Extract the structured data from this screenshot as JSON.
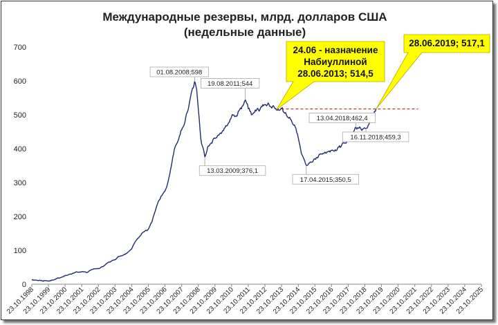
{
  "chart_data": {
    "type": "line",
    "title": [
      "Международные резервы, млрд. долларов США",
      "(недельные данные)"
    ],
    "xlabel": "",
    "ylabel": "",
    "ylim": [
      0,
      700
    ],
    "yticks": [
      0,
      100,
      200,
      300,
      400,
      500,
      600,
      700
    ],
    "xlim": [
      "1998-10-23",
      "2025-10-23"
    ],
    "xtick_labels": [
      "23.10.1998",
      "23.10.1999",
      "23.10.2000",
      "23.10.2001",
      "23.10.2002",
      "23.10.2003",
      "23.10.2004",
      "23.10.2005",
      "23.10.2006",
      "23.10.2007",
      "23.10.2008",
      "23.10.2009",
      "23.10.2010",
      "23.10.2011",
      "23.10.2012",
      "23.10.2013",
      "23.10.2014",
      "23.10.2015",
      "23.10.2016",
      "23.10.2017",
      "23.10.2018",
      "23.10.2019",
      "23.10.2020",
      "23.10.2021",
      "23.10.2022",
      "23.10.2023",
      "23.10.2024",
      "23.10.2025"
    ],
    "grid": false,
    "series": [
      {
        "color": "#1f2a6b",
        "points": [
          [
            "1998-10-23",
            12
          ],
          [
            "1999-03-01",
            11
          ],
          [
            "1999-06-01",
            10
          ],
          [
            "1999-10-23",
            9
          ],
          [
            "2000-01-01",
            12
          ],
          [
            "2000-06-01",
            18
          ],
          [
            "2000-10-23",
            25
          ],
          [
            "2001-01-01",
            28
          ],
          [
            "2001-06-01",
            35
          ],
          [
            "2001-10-23",
            37
          ],
          [
            "2002-03-01",
            35
          ],
          [
            "2002-06-01",
            43
          ],
          [
            "2002-10-23",
            46
          ],
          [
            "2003-02-01",
            52
          ],
          [
            "2003-06-01",
            65
          ],
          [
            "2003-10-23",
            72
          ],
          [
            "2004-01-01",
            82
          ],
          [
            "2004-06-01",
            88
          ],
          [
            "2004-10-23",
            105
          ],
          [
            "2005-01-01",
            124
          ],
          [
            "2005-06-01",
            150
          ],
          [
            "2005-10-23",
            162
          ],
          [
            "2006-01-01",
            182
          ],
          [
            "2006-06-01",
            245
          ],
          [
            "2006-10-23",
            275
          ],
          [
            "2007-01-01",
            305
          ],
          [
            "2007-06-01",
            405
          ],
          [
            "2007-10-23",
            455
          ],
          [
            "2008-01-01",
            478
          ],
          [
            "2008-05-01",
            550
          ],
          [
            "2008-08-01",
            598
          ],
          [
            "2008-09-15",
            575
          ],
          [
            "2008-10-23",
            515
          ],
          [
            "2008-12-15",
            430
          ],
          [
            "2009-03-13",
            376
          ],
          [
            "2009-06-01",
            408
          ],
          [
            "2009-10-23",
            430
          ],
          [
            "2010-01-01",
            440
          ],
          [
            "2010-06-01",
            462
          ],
          [
            "2010-10-23",
            495
          ],
          [
            "2011-03-01",
            500
          ],
          [
            "2011-08-19",
            544
          ],
          [
            "2011-10-23",
            518
          ],
          [
            "2012-01-01",
            500
          ],
          [
            "2012-06-01",
            515
          ],
          [
            "2012-10-23",
            530
          ],
          [
            "2013-01-01",
            535
          ],
          [
            "2013-06-28",
            514.5
          ],
          [
            "2013-10-23",
            520
          ],
          [
            "2014-01-01",
            505
          ],
          [
            "2014-04-01",
            490
          ],
          [
            "2014-08-01",
            470
          ],
          [
            "2014-10-23",
            432
          ],
          [
            "2015-01-01",
            385
          ],
          [
            "2015-04-17",
            350.5
          ],
          [
            "2015-08-01",
            360
          ],
          [
            "2015-10-23",
            370
          ],
          [
            "2016-03-01",
            385
          ],
          [
            "2016-06-01",
            390
          ],
          [
            "2016-10-23",
            395
          ],
          [
            "2017-03-01",
            400
          ],
          [
            "2017-06-01",
            410
          ],
          [
            "2017-10-23",
            425
          ],
          [
            "2018-01-01",
            432
          ],
          [
            "2018-04-13",
            462.4
          ],
          [
            "2018-08-01",
            458
          ],
          [
            "2018-11-16",
            459.3
          ],
          [
            "2019-01-01",
            468
          ],
          [
            "2019-03-01",
            485
          ],
          [
            "2019-05-01",
            500
          ],
          [
            "2019-06-28",
            517.1
          ]
        ]
      }
    ],
    "reference_line": {
      "value": 517.1,
      "from": "2013-06-28",
      "to": "2022-01-01",
      "color": "#d00000",
      "style": "dashed"
    },
    "annotations": [
      {
        "label": "01.08.2008;598",
        "x": "2008-08-01",
        "y": 598
      },
      {
        "label": "19.08.2011;544",
        "x": "2011-08-19",
        "y": 544
      },
      {
        "label": "13.03.2009;376,1",
        "x": "2009-03-13",
        "y": 376.1
      },
      {
        "label": "17.04.2015;350,5",
        "x": "2015-04-17",
        "y": 350.5
      },
      {
        "label": "13.04.2018;462,4",
        "x": "2018-04-13",
        "y": 462.4
      },
      {
        "label": "16.11.2018;459,3",
        "x": "2018-11-16",
        "y": 459.3
      }
    ],
    "callouts": [
      {
        "lines": [
          "24.06 - назначение",
          "Набиуллиной",
          "28.06.2013; 514,5"
        ],
        "x": "2013-06-28",
        "y": 514.5,
        "fill": "#ffff00"
      },
      {
        "lines": [
          "28.06.2019; 517,1"
        ],
        "x": "2019-06-28",
        "y": 517.1,
        "fill": "#ffff00"
      }
    ]
  }
}
